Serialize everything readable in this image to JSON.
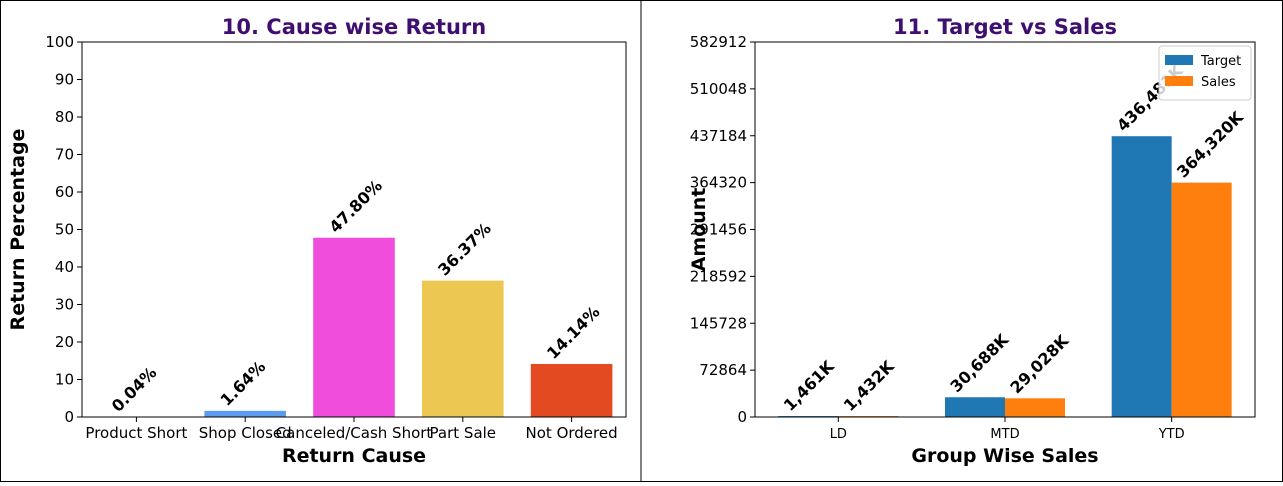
{
  "chart_data": [
    {
      "type": "bar",
      "title": "10. Cause wise Return",
      "xlabel": "Return Cause",
      "ylabel": "Return Percentage",
      "categories": [
        "Product Short",
        "Shop Closed",
        "Canceled/Cash Short",
        "Part Sale",
        "Not Ordered"
      ],
      "values": [
        0.04,
        1.64,
        47.8,
        36.37,
        14.14
      ],
      "value_labels": [
        "0.04%",
        "1.64%",
        "47.80%",
        "36.37%",
        "14.14%"
      ],
      "colors": [
        "#8c8c8c",
        "#5b9bf0",
        "#f04ddc",
        "#ecc852",
        "#e34a22"
      ],
      "ylim": [
        0,
        100
      ],
      "yticks": [
        0,
        10,
        20,
        30,
        40,
        50,
        60,
        70,
        80,
        90,
        100
      ]
    },
    {
      "type": "grouped_bar",
      "title": "11. Target vs Sales",
      "xlabel": "Group Wise Sales",
      "ylabel": "Amount",
      "categories": [
        "LD",
        "MTD",
        "YTD"
      ],
      "series": [
        {
          "name": "Target",
          "color": "#1f77b4",
          "values": [
            1461,
            30688,
            436481
          ],
          "value_labels": [
            "1,461K",
            "30,688K",
            "436,481K"
          ]
        },
        {
          "name": "Sales",
          "color": "#ff7f0e",
          "values": [
            1432,
            29028,
            364320
          ],
          "value_labels": [
            "1,432K",
            "29,028K",
            "364,320K"
          ]
        }
      ],
      "ylim": [
        0,
        582912
      ],
      "yticks": [
        0,
        72864,
        145728,
        218592,
        291456,
        364320,
        437184,
        510048,
        582912
      ],
      "legend": "upper right"
    }
  ]
}
